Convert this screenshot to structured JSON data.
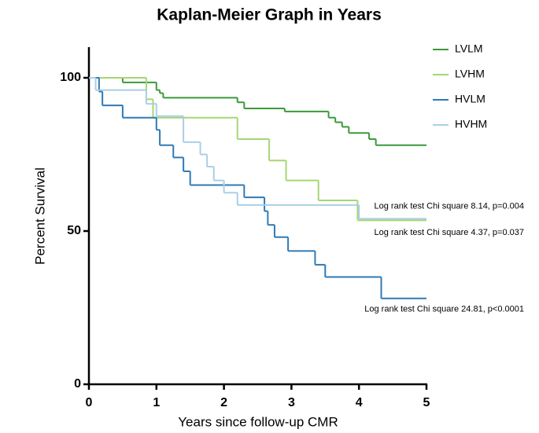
{
  "chart_data": {
    "type": "line",
    "step": "post",
    "title": "Kaplan-Meier Graph in Years",
    "x_label": "Years since follow-up CMR",
    "y_label": "Percent  Survival",
    "xlim": [
      0,
      5
    ],
    "ylim": [
      0,
      110
    ],
    "xticks": [
      0,
      1,
      2,
      3,
      4,
      5
    ],
    "yticks": [
      0,
      50,
      100
    ],
    "legend": "upper right",
    "series": [
      {
        "name": "LVLM",
        "color": "#3a9a3a",
        "x": [
          0,
          0.5,
          1.0,
          1.05,
          1.1,
          2.2,
          2.3,
          2.9,
          3.55,
          3.65,
          3.75,
          3.85,
          4.15,
          4.25,
          5
        ],
        "values": [
          100,
          98.5,
          96,
          95,
          93.5,
          92,
          90,
          89,
          87,
          85.5,
          84,
          82,
          80,
          78,
          78
        ]
      },
      {
        "name": "LVHM",
        "color": "#a6d672",
        "x": [
          0,
          0.85,
          0.95,
          2.2,
          2.67,
          2.92,
          3.4,
          3.98,
          5
        ],
        "values": [
          100,
          93,
          87,
          80,
          73,
          66.5,
          60,
          53.5,
          53.5
        ]
      },
      {
        "name": "HVLM",
        "color": "#2f7ab5",
        "x": [
          0,
          0.15,
          0.2,
          0.5,
          1.0,
          1.05,
          1.25,
          1.4,
          1.5,
          2.3,
          2.6,
          2.65,
          2.75,
          2.95,
          3.35,
          3.5,
          4.33,
          5
        ],
        "values": [
          100,
          95.5,
          91,
          87,
          83,
          78,
          74,
          69.5,
          65,
          61,
          56.5,
          52,
          48,
          43.5,
          39,
          35,
          28,
          28
        ]
      },
      {
        "name": "HVHM",
        "color": "#a9cfe6",
        "x": [
          0,
          0.1,
          0.85,
          1.0,
          1.4,
          1.65,
          1.75,
          1.85,
          2.0,
          2.2,
          4.0,
          5
        ],
        "values": [
          100,
          96,
          91.5,
          87.5,
          79,
          75,
          71,
          66.5,
          62.5,
          58.5,
          54,
          54
        ]
      }
    ],
    "annotations": [
      {
        "text": "Log rank test Chi square 8.14, p=0.004",
        "y": 58
      },
      {
        "text": "Log rank test Chi square 4.37, p=0.037",
        "y": 49.5
      },
      {
        "text": "Log rank test Chi square 24.81, p<0.0001",
        "y": 24.5
      }
    ]
  }
}
